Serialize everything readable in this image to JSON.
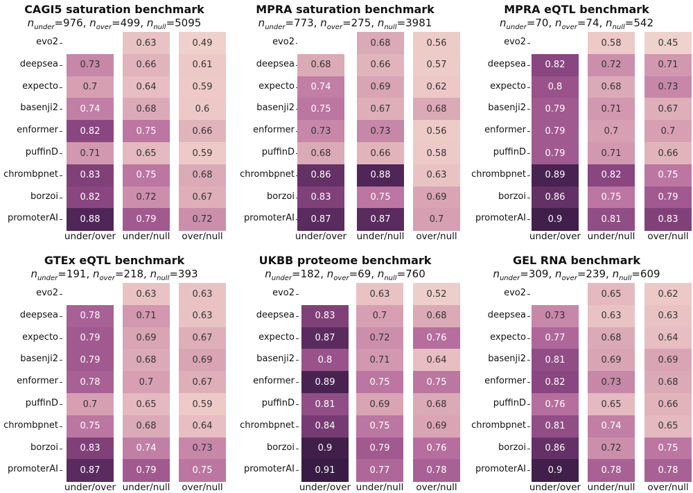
{
  "chart_data": [
    {
      "type": "heatmap",
      "title": "CAGI5 saturation benchmark",
      "counts": {
        "under": "976",
        "over": "499",
        "null": "5095"
      },
      "rows": [
        "evo2",
        "deepsea",
        "expecto",
        "basenji2",
        "enformer",
        "puffinD",
        "chrombpnet",
        "borzoi",
        "promoterAI"
      ],
      "columns": [
        "under/over",
        "under/null",
        "over/null"
      ],
      "values": [
        [
          "",
          "0.63",
          "0.49"
        ],
        [
          "0.73",
          "0.66",
          "0.61"
        ],
        [
          "0.7",
          "0.64",
          "0.59"
        ],
        [
          "0.74",
          "0.68",
          "0.6"
        ],
        [
          "0.82",
          "0.75",
          "0.66"
        ],
        [
          "0.71",
          "0.65",
          "0.59"
        ],
        [
          "0.83",
          "0.75",
          "0.68"
        ],
        [
          "0.82",
          "0.72",
          "0.67"
        ],
        [
          "0.88",
          "0.79",
          "0.72"
        ]
      ]
    },
    {
      "type": "heatmap",
      "title": "MPRA saturation benchmark",
      "counts": {
        "under": "773",
        "over": "275",
        "null": "3981"
      },
      "rows": [
        "evo2",
        "deepsea",
        "expecto",
        "basenji2",
        "enformer",
        "puffinD",
        "chrombpnet",
        "borzoi",
        "promoterAI"
      ],
      "columns": [
        "under/over",
        "under/null",
        "over/null"
      ],
      "values": [
        [
          "",
          "0.68",
          "0.56"
        ],
        [
          "0.68",
          "0.66",
          "0.57"
        ],
        [
          "0.74",
          "0.69",
          "0.62"
        ],
        [
          "0.75",
          "0.67",
          "0.68"
        ],
        [
          "0.73",
          "0.73",
          "0.56"
        ],
        [
          "0.68",
          "0.66",
          "0.58"
        ],
        [
          "0.86",
          "0.88",
          "0.63"
        ],
        [
          "0.83",
          "0.75",
          "0.69"
        ],
        [
          "0.87",
          "0.87",
          "0.7"
        ]
      ]
    },
    {
      "type": "heatmap",
      "title": "MPRA eQTL benchmark",
      "counts": {
        "under": "70",
        "over": "74",
        "null": "542"
      },
      "rows": [
        "evo2",
        "deepsea",
        "expecto",
        "basenji2",
        "enformer",
        "puffinD",
        "chrombpnet",
        "borzoi",
        "promoterAI"
      ],
      "columns": [
        "under/over",
        "under/null",
        "over/null"
      ],
      "values": [
        [
          "",
          "0.58",
          "0.45"
        ],
        [
          "0.82",
          "0.72",
          "0.71"
        ],
        [
          "0.8",
          "0.68",
          "0.73"
        ],
        [
          "0.79",
          "0.71",
          "0.67"
        ],
        [
          "0.79",
          "0.7",
          "0.7"
        ],
        [
          "0.79",
          "0.71",
          "0.66"
        ],
        [
          "0.89",
          "0.82",
          "0.75"
        ],
        [
          "0.86",
          "0.75",
          "0.79"
        ],
        [
          "0.9",
          "0.81",
          "0.83"
        ]
      ]
    },
    {
      "type": "heatmap",
      "title": "GTEx eQTL benchmark",
      "counts": {
        "under": "191",
        "over": "218",
        "null": "393"
      },
      "rows": [
        "evo2",
        "deepsea",
        "expecto",
        "basenji2",
        "enformer",
        "puffinD",
        "chrombpnet",
        "borzoi",
        "promoterAI"
      ],
      "columns": [
        "under/over",
        "under/null",
        "over/null"
      ],
      "values": [
        [
          "",
          "0.63",
          "0.63"
        ],
        [
          "0.78",
          "0.71",
          "0.63"
        ],
        [
          "0.79",
          "0.69",
          "0.67"
        ],
        [
          "0.79",
          "0.68",
          "0.69"
        ],
        [
          "0.78",
          "0.7",
          "0.67"
        ],
        [
          "0.7",
          "0.65",
          "0.59"
        ],
        [
          "0.75",
          "0.68",
          "0.64"
        ],
        [
          "0.83",
          "0.74",
          "0.73"
        ],
        [
          "0.87",
          "0.79",
          "0.75"
        ]
      ]
    },
    {
      "type": "heatmap",
      "title": "UKBB proteome benchmark",
      "counts": {
        "under": "182",
        "over": "69",
        "null": "760"
      },
      "rows": [
        "evo2",
        "deepsea",
        "expecto",
        "basenji2",
        "enformer",
        "puffinD",
        "chrombpnet",
        "borzoi",
        "promoterAI"
      ],
      "columns": [
        "under/over",
        "under/null",
        "over/null"
      ],
      "values": [
        [
          "",
          "0.63",
          "0.52"
        ],
        [
          "0.83",
          "0.7",
          "0.68"
        ],
        [
          "0.87",
          "0.72",
          "0.76"
        ],
        [
          "0.8",
          "0.71",
          "0.64"
        ],
        [
          "0.89",
          "0.75",
          "0.75"
        ],
        [
          "0.81",
          "0.69",
          "0.68"
        ],
        [
          "0.84",
          "0.75",
          "0.69"
        ],
        [
          "0.9",
          "0.79",
          "0.76"
        ],
        [
          "0.91",
          "0.77",
          "0.78"
        ]
      ]
    },
    {
      "type": "heatmap",
      "title": "GEL RNA benchmark",
      "counts": {
        "under": "309",
        "over": "239",
        "null": "609"
      },
      "rows": [
        "evo2",
        "deepsea",
        "expecto",
        "basenji2",
        "enformer",
        "puffinD",
        "chrombpnet",
        "borzoi",
        "promoterAI"
      ],
      "columns": [
        "under/over",
        "under/null",
        "over/null"
      ],
      "values": [
        [
          "",
          "0.65",
          "0.62"
        ],
        [
          "0.73",
          "0.63",
          "0.63"
        ],
        [
          "0.77",
          "0.68",
          "0.64"
        ],
        [
          "0.81",
          "0.69",
          "0.69"
        ],
        [
          "0.82",
          "0.73",
          "0.68"
        ],
        [
          "0.76",
          "0.65",
          "0.66"
        ],
        [
          "0.81",
          "0.74",
          "0.65"
        ],
        [
          "0.86",
          "0.72",
          "0.75"
        ],
        [
          "0.9",
          "0.78",
          "0.78"
        ]
      ]
    }
  ]
}
